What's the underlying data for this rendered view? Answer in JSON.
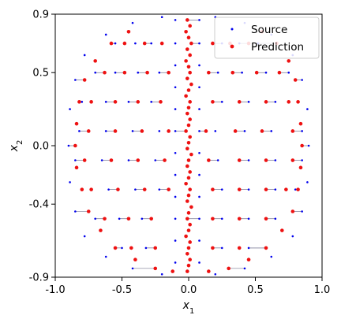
{
  "chart_data": {
    "type": "scatter",
    "xlabel": "x",
    "xlabel_sub": "1",
    "ylabel": "x",
    "ylabel_sub": "2",
    "xlim": [
      -1.0,
      1.0
    ],
    "ylim": [
      -0.9,
      0.9
    ],
    "x_ticks": [
      -1.0,
      -0.5,
      0.0,
      0.5,
      1.0
    ],
    "x_tick_labels": [
      "-1.0",
      "-0.5",
      "0.0",
      "0.5",
      "1.0"
    ],
    "y_ticks": [
      -0.9,
      -0.4,
      0.0,
      0.5,
      0.9
    ],
    "y_tick_labels": [
      "-0.9",
      "-0.4",
      "0.0",
      "0.5",
      "0.9"
    ],
    "grid": false,
    "legend_position": "top-right",
    "series": [
      {
        "name": "Source",
        "color": "#0000ee",
        "marker": "small-dot",
        "points": [
          [
            -0.1,
            0.86
          ],
          [
            -0.1,
            0.7
          ],
          [
            -0.1,
            0.55
          ],
          [
            -0.1,
            0.4
          ],
          [
            -0.1,
            0.25
          ],
          [
            -0.1,
            0.1
          ],
          [
            -0.1,
            -0.05
          ],
          [
            -0.1,
            -0.2
          ],
          [
            -0.1,
            -0.35
          ],
          [
            -0.1,
            -0.5
          ],
          [
            -0.1,
            -0.65
          ],
          [
            -0.1,
            -0.8
          ],
          [
            0.08,
            0.86
          ],
          [
            0.08,
            0.7
          ],
          [
            0.08,
            0.55
          ],
          [
            0.08,
            0.4
          ],
          [
            0.08,
            0.25
          ],
          [
            0.08,
            0.1
          ],
          [
            0.08,
            -0.05
          ],
          [
            0.08,
            -0.2
          ],
          [
            0.08,
            -0.35
          ],
          [
            0.08,
            -0.5
          ],
          [
            0.08,
            -0.65
          ],
          [
            0.08,
            -0.8
          ],
          [
            -0.55,
            0.7
          ],
          [
            -0.4,
            0.7
          ],
          [
            -0.28,
            0.7
          ],
          [
            0.25,
            0.7
          ],
          [
            0.38,
            0.7
          ],
          [
            0.52,
            0.7
          ],
          [
            -0.7,
            0.5
          ],
          [
            -0.55,
            0.5
          ],
          [
            -0.38,
            0.5
          ],
          [
            -0.22,
            0.5
          ],
          [
            0.22,
            0.5
          ],
          [
            0.4,
            0.5
          ],
          [
            0.58,
            0.5
          ],
          [
            0.75,
            0.5
          ],
          [
            -0.8,
            0.3
          ],
          [
            -0.62,
            0.3
          ],
          [
            -0.45,
            0.3
          ],
          [
            -0.28,
            0.3
          ],
          [
            0.25,
            0.3
          ],
          [
            0.45,
            0.3
          ],
          [
            0.65,
            0.3
          ],
          [
            0.82,
            0.3
          ],
          [
            -0.82,
            0.1
          ],
          [
            -0.62,
            0.1
          ],
          [
            -0.42,
            0.1
          ],
          [
            -0.22,
            0.1
          ],
          [
            0.2,
            0.1
          ],
          [
            0.42,
            0.1
          ],
          [
            0.62,
            0.1
          ],
          [
            0.85,
            0.1
          ],
          [
            -0.85,
            -0.1
          ],
          [
            -0.65,
            -0.1
          ],
          [
            -0.45,
            -0.1
          ],
          [
            -0.25,
            -0.1
          ],
          [
            0.22,
            -0.1
          ],
          [
            0.45,
            -0.1
          ],
          [
            0.65,
            -0.1
          ],
          [
            0.85,
            -0.1
          ],
          [
            -0.8,
            -0.3
          ],
          [
            -0.6,
            -0.3
          ],
          [
            -0.4,
            -0.3
          ],
          [
            -0.22,
            -0.3
          ],
          [
            0.25,
            -0.3
          ],
          [
            0.45,
            -0.3
          ],
          [
            0.65,
            -0.3
          ],
          [
            0.8,
            -0.3
          ],
          [
            -0.7,
            -0.5
          ],
          [
            -0.52,
            -0.5
          ],
          [
            -0.35,
            -0.5
          ],
          [
            0.25,
            -0.5
          ],
          [
            0.45,
            -0.5
          ],
          [
            0.65,
            -0.5
          ],
          [
            -0.5,
            -0.7
          ],
          [
            -0.32,
            -0.7
          ],
          [
            0.25,
            -0.7
          ],
          [
            0.45,
            -0.7
          ],
          [
            0.9,
            0.0
          ],
          [
            0.89,
            0.25
          ],
          [
            0.85,
            0.45
          ],
          [
            0.78,
            0.62
          ],
          [
            0.62,
            0.76
          ],
          [
            0.42,
            0.84
          ],
          [
            0.2,
            0.88
          ],
          [
            -0.2,
            0.88
          ],
          [
            -0.42,
            0.84
          ],
          [
            -0.62,
            0.76
          ],
          [
            -0.78,
            0.62
          ],
          [
            -0.85,
            0.45
          ],
          [
            -0.89,
            0.25
          ],
          [
            -0.9,
            0.0
          ],
          [
            -0.89,
            -0.25
          ],
          [
            -0.85,
            -0.45
          ],
          [
            -0.78,
            -0.62
          ],
          [
            -0.62,
            -0.76
          ],
          [
            -0.42,
            -0.84
          ],
          [
            -0.2,
            -0.88
          ],
          [
            0.2,
            -0.88
          ],
          [
            0.42,
            -0.84
          ],
          [
            0.62,
            -0.76
          ],
          [
            0.78,
            -0.62
          ],
          [
            0.85,
            -0.45
          ],
          [
            0.89,
            -0.25
          ]
        ]
      },
      {
        "name": "Prediction",
        "color": "#ee1111",
        "marker": "dot",
        "points": [
          [
            -0.01,
            0.86
          ],
          [
            0.01,
            0.82
          ],
          [
            -0.02,
            0.78
          ],
          [
            0.0,
            0.74
          ],
          [
            0.02,
            0.7
          ],
          [
            -0.01,
            0.66
          ],
          [
            0.01,
            0.62
          ],
          [
            -0.02,
            0.58
          ],
          [
            0.0,
            0.54
          ],
          [
            0.01,
            0.5
          ],
          [
            -0.01,
            0.46
          ],
          [
            0.02,
            0.42
          ],
          [
            0.0,
            0.38
          ],
          [
            -0.02,
            0.34
          ],
          [
            0.01,
            0.3
          ],
          [
            0.0,
            0.26
          ],
          [
            -0.01,
            0.22
          ],
          [
            0.01,
            0.18
          ],
          [
            0.0,
            0.14
          ],
          [
            -0.02,
            0.1
          ],
          [
            0.01,
            0.06
          ],
          [
            0.0,
            0.02
          ],
          [
            -0.01,
            -0.02
          ],
          [
            0.02,
            -0.06
          ],
          [
            0.0,
            -0.1
          ],
          [
            -0.01,
            -0.14
          ],
          [
            0.01,
            -0.18
          ],
          [
            0.0,
            -0.22
          ],
          [
            -0.02,
            -0.26
          ],
          [
            0.01,
            -0.3
          ],
          [
            0.0,
            -0.34
          ],
          [
            -0.01,
            -0.38
          ],
          [
            0.02,
            -0.42
          ],
          [
            0.0,
            -0.46
          ],
          [
            -0.01,
            -0.5
          ],
          [
            0.01,
            -0.54
          ],
          [
            0.0,
            -0.58
          ],
          [
            -0.02,
            -0.62
          ],
          [
            0.01,
            -0.66
          ],
          [
            0.0,
            -0.7
          ],
          [
            -0.01,
            -0.74
          ],
          [
            0.01,
            -0.78
          ],
          [
            0.0,
            -0.82
          ],
          [
            -0.01,
            -0.86
          ],
          [
            0.82,
            0.3
          ],
          [
            0.8,
            0.45
          ],
          [
            0.75,
            0.58
          ],
          [
            0.66,
            0.7
          ],
          [
            0.55,
            0.78
          ],
          [
            0.84,
            0.15
          ],
          [
            0.85,
            0.0
          ],
          [
            0.84,
            -0.15
          ],
          [
            0.82,
            -0.3
          ],
          [
            0.78,
            -0.45
          ],
          [
            0.7,
            -0.58
          ],
          [
            0.58,
            -0.7
          ],
          [
            0.45,
            -0.78
          ],
          [
            0.3,
            -0.84
          ],
          [
            0.15,
            -0.86
          ],
          [
            -0.82,
            0.3
          ],
          [
            -0.78,
            0.45
          ],
          [
            -0.7,
            0.58
          ],
          [
            -0.58,
            0.7
          ],
          [
            -0.45,
            0.78
          ],
          [
            -0.84,
            0.15
          ],
          [
            -0.85,
            0.0
          ],
          [
            -0.84,
            -0.15
          ],
          [
            -0.8,
            -0.3
          ],
          [
            -0.75,
            -0.45
          ],
          [
            -0.66,
            -0.58
          ],
          [
            -0.55,
            -0.7
          ],
          [
            -0.4,
            -0.78
          ],
          [
            -0.25,
            -0.84
          ],
          [
            -0.12,
            -0.86
          ],
          [
            -0.48,
            0.7
          ],
          [
            -0.33,
            0.7
          ],
          [
            -0.2,
            0.7
          ],
          [
            0.18,
            0.7
          ],
          [
            0.31,
            0.7
          ],
          [
            0.45,
            0.7
          ],
          [
            -0.63,
            0.5
          ],
          [
            -0.48,
            0.5
          ],
          [
            -0.31,
            0.5
          ],
          [
            -0.15,
            0.5
          ],
          [
            0.15,
            0.5
          ],
          [
            0.33,
            0.5
          ],
          [
            0.51,
            0.5
          ],
          [
            0.68,
            0.5
          ],
          [
            -0.73,
            0.3
          ],
          [
            -0.55,
            0.3
          ],
          [
            -0.38,
            0.3
          ],
          [
            -0.21,
            0.3
          ],
          [
            0.18,
            0.3
          ],
          [
            0.38,
            0.3
          ],
          [
            0.58,
            0.3
          ],
          [
            0.75,
            0.3
          ],
          [
            -0.75,
            0.1
          ],
          [
            -0.55,
            0.1
          ],
          [
            -0.35,
            0.1
          ],
          [
            -0.15,
            0.1
          ],
          [
            0.13,
            0.1
          ],
          [
            0.35,
            0.1
          ],
          [
            0.55,
            0.1
          ],
          [
            0.78,
            0.1
          ],
          [
            -0.78,
            -0.1
          ],
          [
            -0.58,
            -0.1
          ],
          [
            -0.38,
            -0.1
          ],
          [
            -0.18,
            -0.1
          ],
          [
            0.15,
            -0.1
          ],
          [
            0.38,
            -0.1
          ],
          [
            0.58,
            -0.1
          ],
          [
            0.78,
            -0.1
          ],
          [
            -0.73,
            -0.3
          ],
          [
            -0.53,
            -0.3
          ],
          [
            -0.33,
            -0.3
          ],
          [
            -0.15,
            -0.3
          ],
          [
            0.18,
            -0.3
          ],
          [
            0.38,
            -0.3
          ],
          [
            0.58,
            -0.3
          ],
          [
            0.73,
            -0.3
          ],
          [
            -0.63,
            -0.5
          ],
          [
            -0.45,
            -0.5
          ],
          [
            -0.28,
            -0.5
          ],
          [
            0.18,
            -0.5
          ],
          [
            0.38,
            -0.5
          ],
          [
            0.58,
            -0.5
          ],
          [
            -0.43,
            -0.7
          ],
          [
            -0.25,
            -0.7
          ],
          [
            0.18,
            -0.7
          ],
          [
            0.38,
            -0.7
          ]
        ]
      }
    ]
  }
}
